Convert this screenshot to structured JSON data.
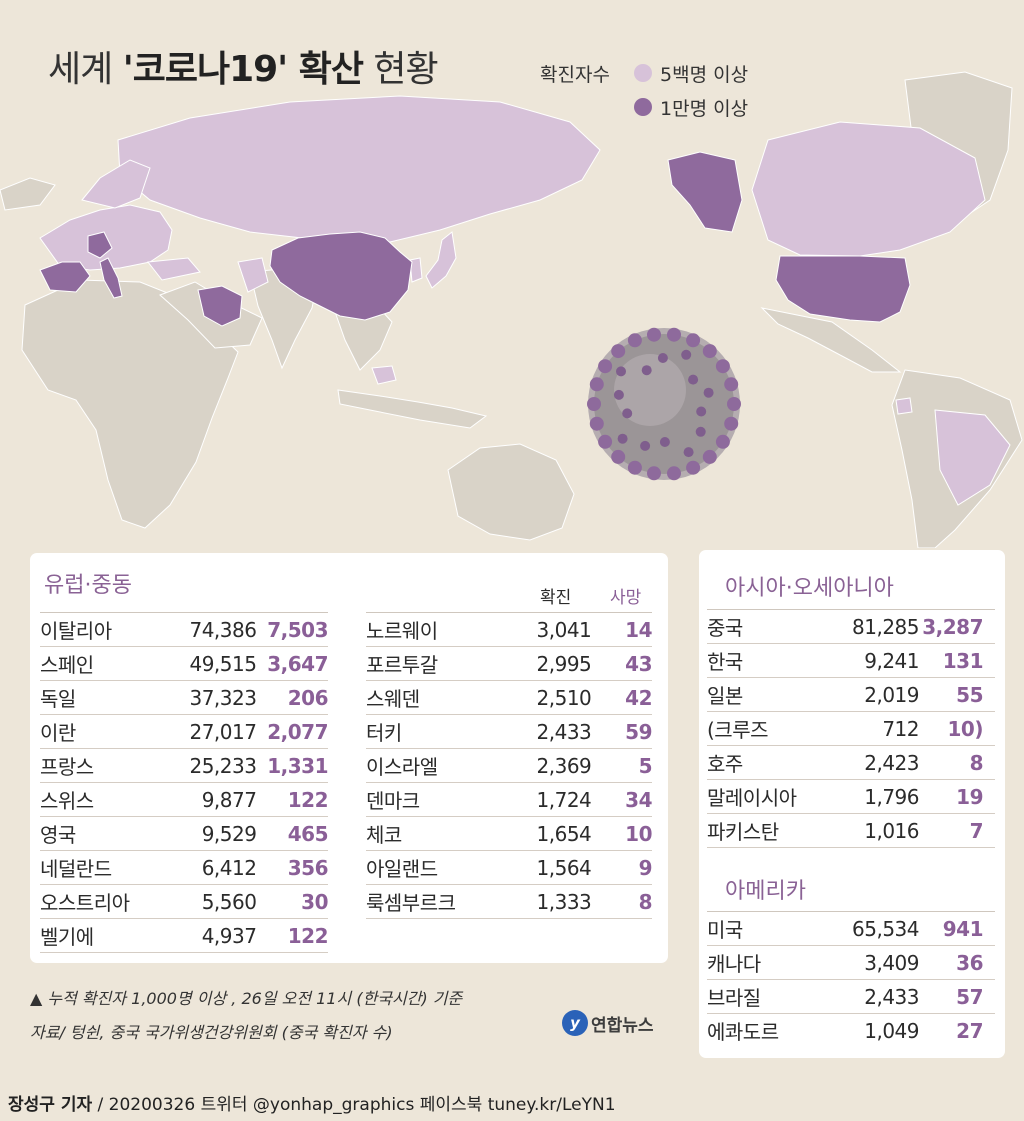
{
  "title": {
    "prefix": "세계 ",
    "bold": "'코로나19' 확산",
    "suffix": " 현황"
  },
  "legend": {
    "label": "확진자수",
    "items": [
      {
        "label": "5백명 이상",
        "color": "#d7c2d9"
      },
      {
        "label": "1만명 이상",
        "color": "#8f6a9d"
      }
    ]
  },
  "colors": {
    "accent": "#8a5f97",
    "land_base": "#d9d3c8",
    "sea": "#ede6d9"
  },
  "europe": {
    "title": "유럽·중동",
    "col_confirmed": "확진",
    "col_deaths": "사망",
    "left": [
      {
        "name": "이탈리아",
        "confirmed": "74,386",
        "deaths": "7,503"
      },
      {
        "name": "스페인",
        "confirmed": "49,515",
        "deaths": "3,647"
      },
      {
        "name": "독일",
        "confirmed": "37,323",
        "deaths": "206"
      },
      {
        "name": "이란",
        "confirmed": "27,017",
        "deaths": "2,077"
      },
      {
        "name": "프랑스",
        "confirmed": "25,233",
        "deaths": "1,331"
      },
      {
        "name": "스위스",
        "confirmed": "9,877",
        "deaths": "122"
      },
      {
        "name": "영국",
        "confirmed": "9,529",
        "deaths": "465"
      },
      {
        "name": "네덜란드",
        "confirmed": "6,412",
        "deaths": "356"
      },
      {
        "name": "오스트리아",
        "confirmed": "5,560",
        "deaths": "30"
      },
      {
        "name": "벨기에",
        "confirmed": "4,937",
        "deaths": "122"
      }
    ],
    "right": [
      {
        "name": "노르웨이",
        "confirmed": "3,041",
        "deaths": "14"
      },
      {
        "name": "포르투갈",
        "confirmed": "2,995",
        "deaths": "43"
      },
      {
        "name": "스웨덴",
        "confirmed": "2,510",
        "deaths": "42"
      },
      {
        "name": "터키",
        "confirmed": "2,433",
        "deaths": "59"
      },
      {
        "name": "이스라엘",
        "confirmed": "2,369",
        "deaths": "5"
      },
      {
        "name": "덴마크",
        "confirmed": "1,724",
        "deaths": "34"
      },
      {
        "name": "체코",
        "confirmed": "1,654",
        "deaths": "10"
      },
      {
        "name": "아일랜드",
        "confirmed": "1,564",
        "deaths": "9"
      },
      {
        "name": "룩셈부르크",
        "confirmed": "1,333",
        "deaths": "8"
      }
    ]
  },
  "asia": {
    "title": "아시아·오세아니아",
    "rows": [
      {
        "name": "중국",
        "confirmed": "81,285",
        "deaths": "3,287"
      },
      {
        "name": "한국",
        "confirmed": "9,241",
        "deaths": "131"
      },
      {
        "name": "일본",
        "confirmed": "2,019",
        "deaths": "55"
      },
      {
        "name": "(크루즈",
        "confirmed": "712",
        "deaths": "10)"
      },
      {
        "name": "호주",
        "confirmed": "2,423",
        "deaths": "8"
      },
      {
        "name": "말레이시아",
        "confirmed": "1,796",
        "deaths": "19"
      },
      {
        "name": "파키스탄",
        "confirmed": "1,016",
        "deaths": "7"
      }
    ]
  },
  "america": {
    "title": "아메리카",
    "rows": [
      {
        "name": "미국",
        "confirmed": "65,534",
        "deaths": "941"
      },
      {
        "name": "캐나다",
        "confirmed": "3,409",
        "deaths": "36"
      },
      {
        "name": "브라질",
        "confirmed": "2,433",
        "deaths": "57"
      },
      {
        "name": "에콰도르",
        "confirmed": "1,049",
        "deaths": "27"
      }
    ]
  },
  "footnotes": {
    "note1": "▲ 누적 확진자 1,000명 이상 , 26일 오전 11시 (한국시간) 기준",
    "note2": "자료/  텅쉰,  중국 국가위생건강위원회 (중국 확진자 수)"
  },
  "logo": {
    "mark": "y",
    "text": "연합뉴스"
  },
  "credit": {
    "author": "장성구 기자",
    "rest": " / 20200326  트위터 @yonhap_graphics  페이스북 tuney.kr/LeYN1"
  }
}
